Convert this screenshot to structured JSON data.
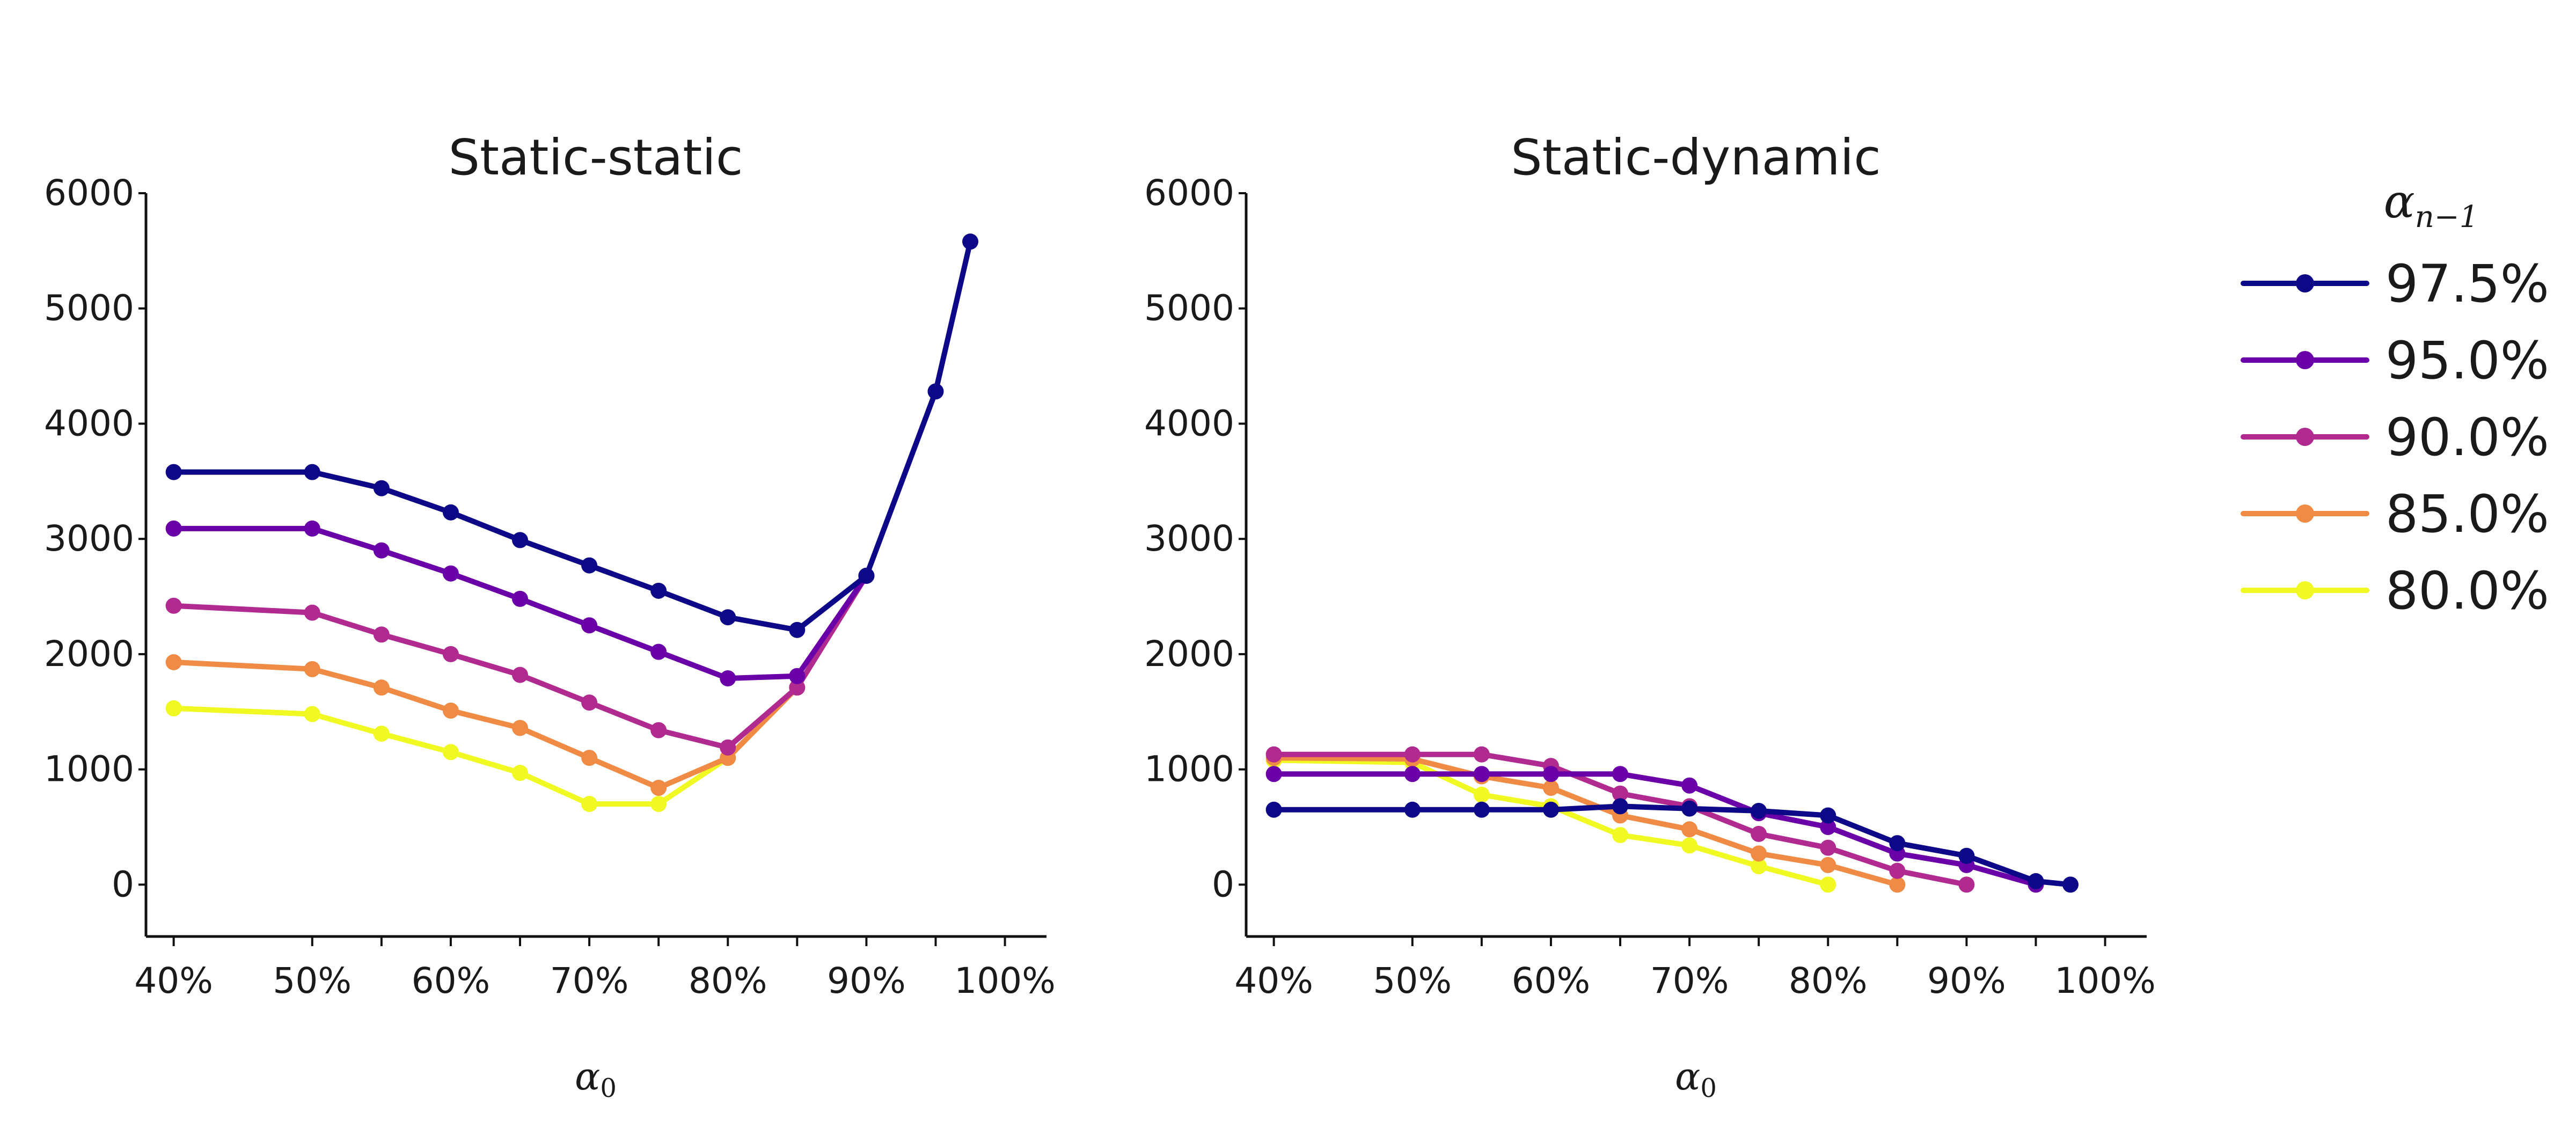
{
  "chart_data": [
    {
      "type": "line",
      "title": "Static-static",
      "xlabel": "α",
      "xlabel_sub": "0",
      "ylabel": "",
      "xlim": [
        38,
        103
      ],
      "ylim": [
        -450,
        6000
      ],
      "x_ticks": [
        40,
        50,
        55,
        60,
        65,
        70,
        75,
        80,
        85,
        90,
        95,
        100
      ],
      "x_tick_labels": [
        "40%",
        "50%",
        "60%",
        "70%",
        "80%",
        "90%",
        "100%"
      ],
      "x_tick_label_values": [
        40,
        50,
        60,
        70,
        80,
        90,
        100
      ],
      "y_ticks": [
        0,
        1000,
        2000,
        3000,
        4000,
        5000,
        6000
      ],
      "y_tick_labels": [
        "0",
        "1000",
        "2000",
        "3000",
        "4000",
        "5000",
        "6000"
      ],
      "grid": false,
      "series": [
        {
          "name": "97.5%",
          "color": "#0d0887",
          "x": [
            40,
            50,
            55,
            60,
            65,
            70,
            75,
            80,
            85,
            90,
            95,
            97.5
          ],
          "y": [
            3580,
            3580,
            3440,
            3230,
            2990,
            2770,
            2550,
            2320,
            2210,
            2680,
            4280,
            5580
          ]
        },
        {
          "name": "95.0%",
          "color": "#6a00a8",
          "x": [
            40,
            50,
            55,
            60,
            65,
            70,
            75,
            80,
            85,
            90
          ],
          "y": [
            3090,
            3090,
            2900,
            2700,
            2480,
            2250,
            2020,
            1790,
            1810,
            2680
          ]
        },
        {
          "name": "90.0%",
          "color": "#b12a90",
          "x": [
            40,
            50,
            55,
            60,
            65,
            70,
            75,
            80,
            85,
            90
          ],
          "y": [
            2420,
            2360,
            2170,
            2000,
            1820,
            1580,
            1340,
            1190,
            1710,
            2680
          ]
        },
        {
          "name": "85.0%",
          "color": "#ef8b44",
          "x": [
            40,
            50,
            55,
            60,
            65,
            70,
            75,
            80,
            85
          ],
          "y": [
            1930,
            1870,
            1710,
            1510,
            1360,
            1100,
            840,
            1100,
            1710
          ]
        },
        {
          "name": "80.0%",
          "color": "#f0f921",
          "x": [
            40,
            50,
            55,
            60,
            65,
            70,
            75,
            80
          ],
          "y": [
            1530,
            1480,
            1310,
            1150,
            970,
            700,
            700,
            1100
          ]
        }
      ]
    },
    {
      "type": "line",
      "title": "Static-dynamic",
      "xlabel": "α",
      "xlabel_sub": "0",
      "ylabel": "",
      "xlim": [
        38,
        103
      ],
      "ylim": [
        -450,
        6000
      ],
      "x_ticks": [
        40,
        50,
        55,
        60,
        65,
        70,
        75,
        80,
        85,
        90,
        95,
        100
      ],
      "x_tick_labels": [
        "40%",
        "50%",
        "60%",
        "70%",
        "80%",
        "90%",
        "100%"
      ],
      "x_tick_label_values": [
        40,
        50,
        60,
        70,
        80,
        90,
        100
      ],
      "y_ticks": [
        0,
        1000,
        2000,
        3000,
        4000,
        5000,
        6000
      ],
      "y_tick_labels": [
        "0",
        "1000",
        "2000",
        "3000",
        "4000",
        "5000",
        "6000"
      ],
      "grid": false,
      "series": [
        {
          "name": "97.5%",
          "color": "#0d0887",
          "x": [
            40,
            50,
            55,
            60,
            65,
            70,
            75,
            80,
            85,
            90,
            95,
            97.5
          ],
          "y": [
            650,
            650,
            650,
            650,
            680,
            660,
            640,
            600,
            360,
            250,
            30,
            0
          ]
        },
        {
          "name": "95.0%",
          "color": "#6a00a8",
          "x": [
            40,
            50,
            55,
            60,
            65,
            70,
            75,
            80,
            85,
            90,
            95
          ],
          "y": [
            960,
            960,
            960,
            960,
            960,
            860,
            620,
            500,
            270,
            170,
            0
          ]
        },
        {
          "name": "90.0%",
          "color": "#b12a90",
          "x": [
            40,
            50,
            55,
            60,
            65,
            70,
            75,
            80,
            85,
            90
          ],
          "y": [
            1130,
            1130,
            1130,
            1030,
            790,
            680,
            440,
            320,
            120,
            0
          ]
        },
        {
          "name": "85.0%",
          "color": "#ef8b44",
          "x": [
            40,
            50,
            55,
            60,
            65,
            70,
            75,
            80,
            85
          ],
          "y": [
            1100,
            1090,
            940,
            840,
            600,
            480,
            270,
            170,
            0
          ]
        },
        {
          "name": "80.0%",
          "color": "#f0f921",
          "x": [
            40,
            50,
            55,
            60,
            65,
            70,
            75,
            80
          ],
          "y": [
            1080,
            1060,
            780,
            680,
            430,
            340,
            160,
            0
          ]
        }
      ]
    }
  ],
  "legend": {
    "title": "α",
    "title_sub": "n−1",
    "placement": "right",
    "items": [
      {
        "label": "97.5%",
        "color": "#0d0887"
      },
      {
        "label": "95.0%",
        "color": "#6a00a8"
      },
      {
        "label": "90.0%",
        "color": "#b12a90"
      },
      {
        "label": "85.0%",
        "color": "#ef8b44"
      },
      {
        "label": "80.0%",
        "color": "#f0f921"
      }
    ]
  }
}
